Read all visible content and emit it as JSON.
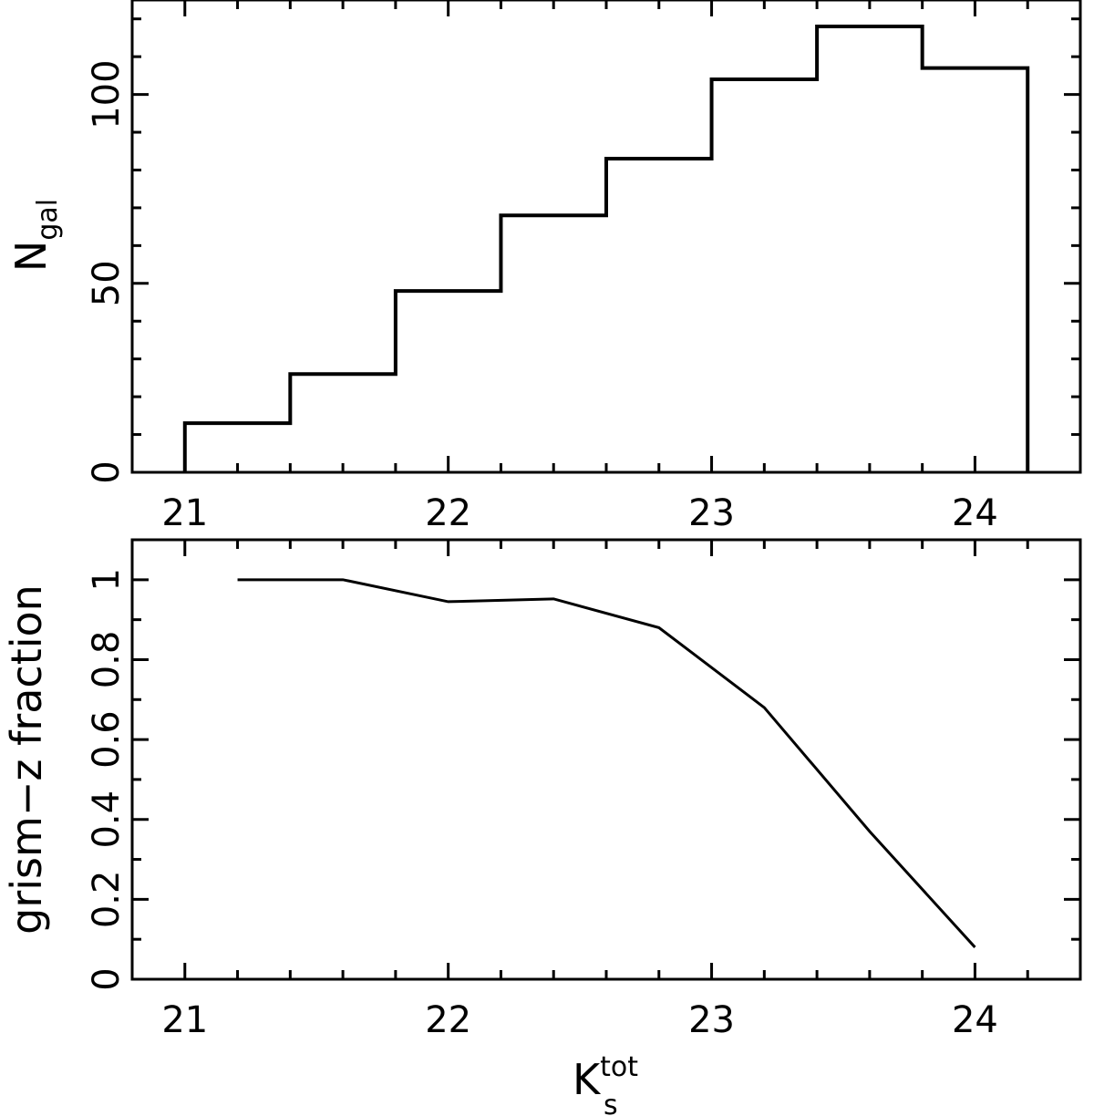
{
  "chart_data": [
    {
      "type": "histogram",
      "ylabel": {
        "main": "N",
        "subscript": "gal"
      },
      "xlim": [
        20.8,
        24.4
      ],
      "ylim": [
        0,
        125
      ],
      "x_ticks": [
        "21",
        "22",
        "23",
        "24"
      ],
      "x_tick_values": [
        21,
        22,
        23,
        24
      ],
      "y_ticks": [
        "0",
        "50",
        "100"
      ],
      "y_tick_values": [
        0,
        50,
        100
      ],
      "bins": [
        {
          "x0": 21.0,
          "x1": 21.4,
          "count": 13
        },
        {
          "x0": 21.4,
          "x1": 21.8,
          "count": 26
        },
        {
          "x0": 21.8,
          "x1": 22.2,
          "count": 48
        },
        {
          "x0": 22.2,
          "x1": 22.6,
          "count": 68
        },
        {
          "x0": 22.6,
          "x1": 23.0,
          "count": 83
        },
        {
          "x0": 23.0,
          "x1": 23.4,
          "count": 104
        },
        {
          "x0": 23.4,
          "x1": 23.8,
          "count": 118
        },
        {
          "x0": 23.8,
          "x1": 24.2,
          "count": 107
        }
      ]
    },
    {
      "type": "line",
      "ylabel": "grism−z fraction",
      "xlabel": {
        "main": "K",
        "superscript": "tot",
        "subscript": "s"
      },
      "xlim": [
        20.8,
        24.4
      ],
      "ylim": [
        0,
        1.1
      ],
      "x_ticks": [
        "21",
        "22",
        "23",
        "24"
      ],
      "x_tick_values": [
        21,
        22,
        23,
        24
      ],
      "y_ticks": [
        "0",
        "0.2",
        "0.4",
        "0.6",
        "0.8",
        "1"
      ],
      "y_tick_values": [
        0,
        0.2,
        0.4,
        0.6,
        0.8,
        1
      ],
      "x": [
        21.2,
        21.6,
        22.0,
        22.4,
        22.8,
        23.2,
        23.6,
        24.0
      ],
      "y": [
        1.0,
        1.0,
        0.945,
        0.952,
        0.88,
        0.68,
        0.37,
        0.08
      ]
    }
  ]
}
